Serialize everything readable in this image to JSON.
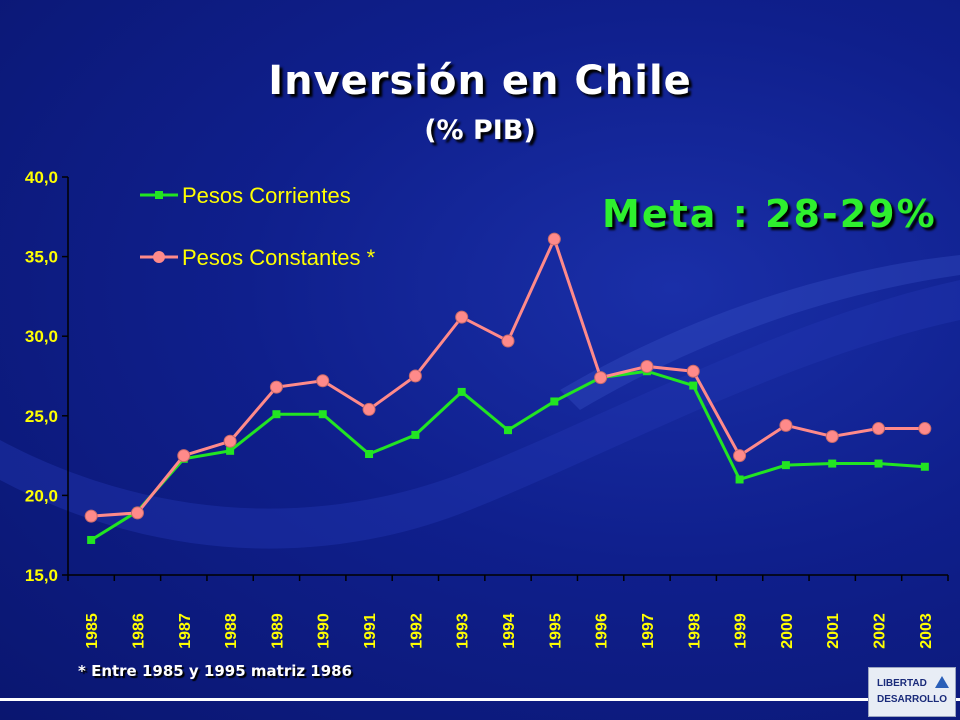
{
  "title": "Inversión en Chile",
  "subtitle": "(% PIB)",
  "annotation": "Meta : 28-29%",
  "footnote": "* Entre 1985 y 1995 matriz 1986",
  "logo": {
    "line1": "LIBERTAD",
    "line2": "DESARROLLO"
  },
  "colors": {
    "background": "#0f1f8c",
    "axis_text": "#ffff00",
    "series_corrientes": "#22e522",
    "series_constantes": "#ff8a8a",
    "meta_text": "#2ef02e"
  },
  "chart_data": {
    "type": "line",
    "categories": [
      "1985",
      "1986",
      "1987",
      "1988",
      "1989",
      "1990",
      "1991",
      "1992",
      "1993",
      "1994",
      "1995",
      "1996",
      "1997",
      "1998",
      "1999",
      "2000",
      "2001",
      "2002",
      "2003"
    ],
    "y_ticks": [
      "15,0",
      "20,0",
      "25,0",
      "30,0",
      "35,0",
      "40,0"
    ],
    "ylim": [
      15,
      40
    ],
    "grid": false,
    "legend_position": "top-left",
    "series": [
      {
        "name": "Pesos Corrientes",
        "marker": "square",
        "values": [
          17.2,
          19.0,
          22.3,
          22.8,
          25.1,
          25.1,
          22.6,
          23.8,
          26.5,
          24.1,
          25.9,
          27.4,
          27.8,
          26.9,
          21.0,
          21.9,
          22.0,
          22.0,
          21.8
        ]
      },
      {
        "name": "Pesos Constantes *",
        "marker": "circle",
        "values": [
          18.7,
          18.9,
          22.5,
          23.4,
          26.8,
          27.2,
          25.4,
          27.5,
          31.2,
          29.7,
          36.1,
          27.4,
          28.1,
          27.8,
          22.5,
          24.4,
          23.7,
          24.2,
          24.2
        ]
      }
    ]
  }
}
